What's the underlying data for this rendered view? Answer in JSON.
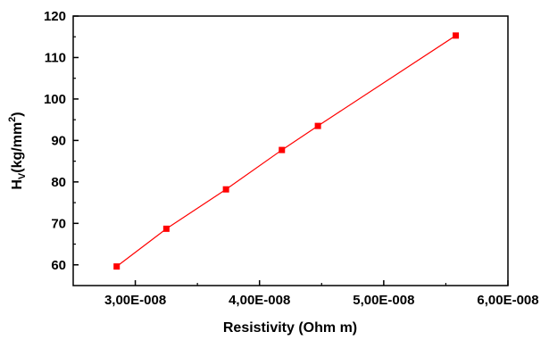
{
  "chart_data": {
    "type": "line",
    "title": "",
    "xlabel": "Resistivity (Ohm m)",
    "ylabel": {
      "main": "H",
      "sub": "V",
      "rest": "(kg/mm",
      "sup": "2",
      "end": ")"
    },
    "xlim": [
      2.5e-08,
      6e-08
    ],
    "ylim": [
      55,
      120
    ],
    "x_ticks": [
      3e-08,
      4e-08,
      5e-08,
      6e-08
    ],
    "x_tick_labels": [
      "3,00E-008",
      "4,00E-008",
      "5,00E-008",
      "6,00E-008"
    ],
    "y_ticks": [
      60,
      70,
      80,
      90,
      100,
      110,
      120
    ],
    "y_tick_labels": [
      "60",
      "70",
      "80",
      "90",
      "100",
      "110",
      "120"
    ],
    "grid": false,
    "legend": "none",
    "series": [
      {
        "color": "#ff0000",
        "marker": "square",
        "x": [
          2.85e-08,
          3.25e-08,
          3.73e-08,
          4.18e-08,
          4.47e-08,
          5.58e-08
        ],
        "y": [
          59.6,
          68.7,
          78.2,
          87.7,
          93.5,
          115.3
        ]
      }
    ]
  }
}
